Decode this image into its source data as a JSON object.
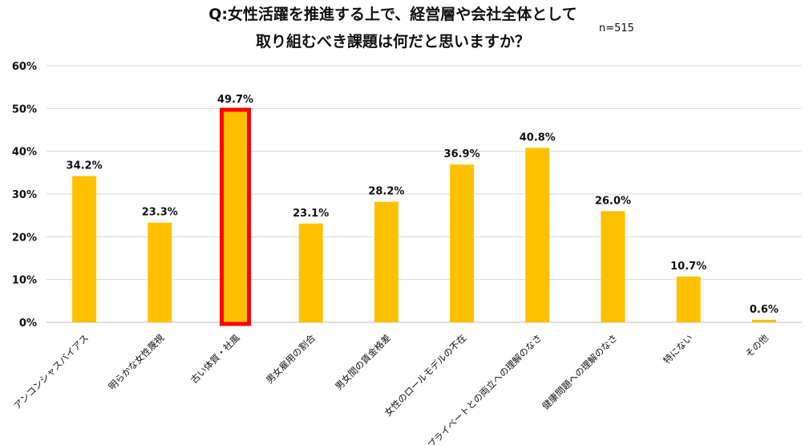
{
  "title_line1": "Q:女性活躍を推進する上で、経営層や会社全体として",
  "title_line2": "取り組むべき課題は何だと思いますか？",
  "sample_size": "n=515",
  "chart_data": {
    "type": "bar",
    "categories": [
      "アンコンシャスバイアス",
      "明らかな女性蔑視",
      "古い体質・社風",
      "男女雇用の割合",
      "男女間の賃金格差",
      "女性のロールモデルの不在",
      "プライベートとの両立への理解のなさ",
      "健康問題への理解のなさ",
      "特にない",
      "その他"
    ],
    "values": [
      34.2,
      23.3,
      49.7,
      23.1,
      28.2,
      36.9,
      40.8,
      26.0,
      10.7,
      0.6
    ],
    "value_labels": [
      "34.2%",
      "23.3%",
      "49.7%",
      "23.1%",
      "28.2%",
      "36.9%",
      "40.8%",
      "26.0%",
      "10.7%",
      "0.6%"
    ],
    "ylim": [
      0,
      60
    ],
    "yticks": [
      0,
      10,
      20,
      30,
      40,
      50,
      60
    ],
    "ytick_labels": [
      "0%",
      "10%",
      "20%",
      "30%",
      "40%",
      "50%",
      "60%"
    ],
    "highlighted_index": 2,
    "grid": true,
    "colors": {
      "bar": "#FFC000",
      "highlight_border": "#FF0000",
      "grid": "#D9D9D9"
    }
  }
}
